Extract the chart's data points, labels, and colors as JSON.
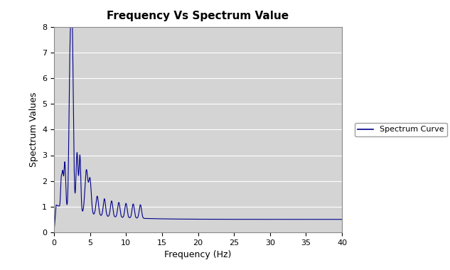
{
  "title": "Frequency Vs Spectrum Value",
  "xlabel": "Frequency (Hz)",
  "ylabel": "Spectrum Values",
  "legend_label": "Spectrum Curve",
  "xlim": [
    0,
    40
  ],
  "ylim": [
    0,
    8
  ],
  "xticks": [
    0,
    5,
    10,
    15,
    20,
    25,
    30,
    35,
    40
  ],
  "yticks": [
    0,
    1,
    2,
    3,
    4,
    5,
    6,
    7,
    8
  ],
  "line_color": "#00008B",
  "plot_bg_color": "#d4d4d4",
  "figure_bg_color": "#ffffff",
  "figsize": [
    6.33,
    3.8
  ],
  "dpi": 100,
  "title_fontsize": 11,
  "axis_label_fontsize": 9,
  "tick_fontsize": 8,
  "legend_fontsize": 8
}
